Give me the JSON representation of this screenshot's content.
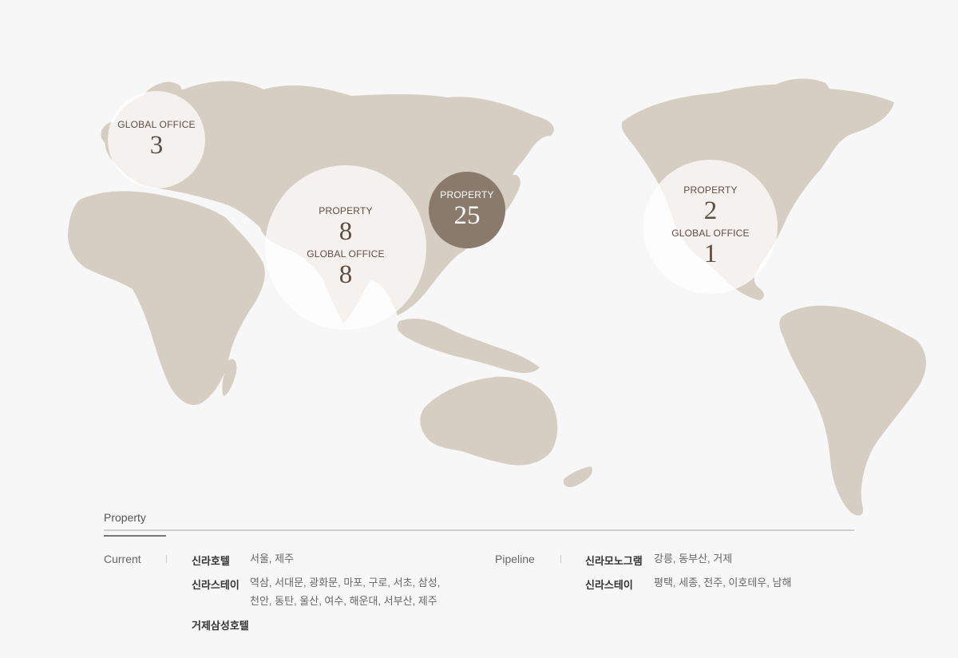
{
  "map": {
    "bubbles": [
      {
        "id": "europe",
        "items": [
          {
            "label": "GLOBAL OFFICE",
            "value": "3"
          }
        ]
      },
      {
        "id": "asia",
        "items": [
          {
            "label": "PROPERTY",
            "value": "8"
          },
          {
            "label": "GLOBAL OFFICE",
            "value": "8"
          }
        ]
      },
      {
        "id": "korea",
        "items": [
          {
            "label": "PROPERTY",
            "value": "25"
          }
        ]
      },
      {
        "id": "america",
        "items": [
          {
            "label": "PROPERTY",
            "value": "2"
          },
          {
            "label": "GLOBAL OFFICE",
            "value": "1"
          }
        ]
      }
    ],
    "colors": {
      "land": "#d6cdc3",
      "highlight": "#8a7a6b",
      "background": "#f7f7f7"
    }
  },
  "legend": {
    "title": "Property",
    "current": {
      "heading": "Current",
      "rows": [
        {
          "brand": "신라호텔",
          "cities_line1": "서울, 제주",
          "cities_line2": ""
        },
        {
          "brand": "신라스테이",
          "cities_line1": "역삼, 서대문, 광화문, 마포, 구로, 서초, 삼성,",
          "cities_line2": "천안, 동탄, 울산, 여수, 해운대, 서부산, 제주"
        },
        {
          "brand": "거제삼성호텔",
          "cities_line1": "",
          "cities_line2": ""
        }
      ]
    },
    "pipeline": {
      "heading": "Pipeline",
      "rows": [
        {
          "brand": "신라모노그램",
          "cities_line1": "강릉, 동부산, 거제"
        },
        {
          "brand": "신라스테이",
          "cities_line1": "평택, 세종, 전주, 이호테우, 남해"
        }
      ]
    }
  }
}
